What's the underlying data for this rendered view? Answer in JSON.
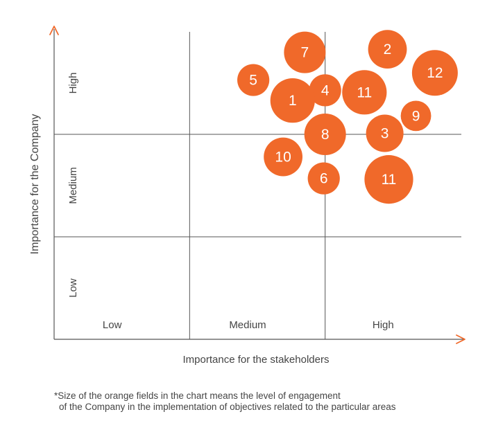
{
  "chart_data": {
    "type": "scatter",
    "xlabel": "Importance for the stakeholders",
    "ylabel": "Importance for the Company",
    "x_categories": [
      "Low",
      "Medium",
      "High"
    ],
    "y_categories": [
      "Low",
      "Medium",
      "High"
    ],
    "xlim": [
      0,
      3
    ],
    "ylim": [
      0,
      3
    ],
    "grid": true,
    "color": "#f0692a",
    "axis_color": "#555555",
    "arrow_color": "#f0692a",
    "points": [
      {
        "label": "7",
        "x": 1.85,
        "y": 2.8,
        "size": 1.0
      },
      {
        "label": "2",
        "x": 2.46,
        "y": 2.83,
        "size": 0.93
      },
      {
        "label": "12",
        "x": 2.81,
        "y": 2.6,
        "size": 1.1
      },
      {
        "label": "5",
        "x": 1.47,
        "y": 2.53,
        "size": 0.77
      },
      {
        "label": "4",
        "x": 2.0,
        "y": 2.43,
        "size": 0.77
      },
      {
        "label": "11",
        "x": 2.29,
        "y": 2.41,
        "size": 1.07
      },
      {
        "label": "1",
        "x": 1.76,
        "y": 2.33,
        "size": 1.07
      },
      {
        "label": "9",
        "x": 2.67,
        "y": 2.18,
        "size": 0.73
      },
      {
        "label": "8",
        "x": 2.0,
        "y": 2.0,
        "size": 1.0
      },
      {
        "label": "3",
        "x": 2.44,
        "y": 2.01,
        "size": 0.9
      },
      {
        "label": "10",
        "x": 1.69,
        "y": 1.78,
        "size": 0.93
      },
      {
        "label": "6",
        "x": 1.99,
        "y": 1.57,
        "size": 0.77
      },
      {
        "label": "11",
        "x": 2.47,
        "y": 1.56,
        "size": 1.17
      }
    ]
  },
  "footnote": {
    "line1": "*Size of the orange fields in the chart means the level of engagement",
    "line2": "of the Company in the implementation of objectives related to the particular areas"
  }
}
